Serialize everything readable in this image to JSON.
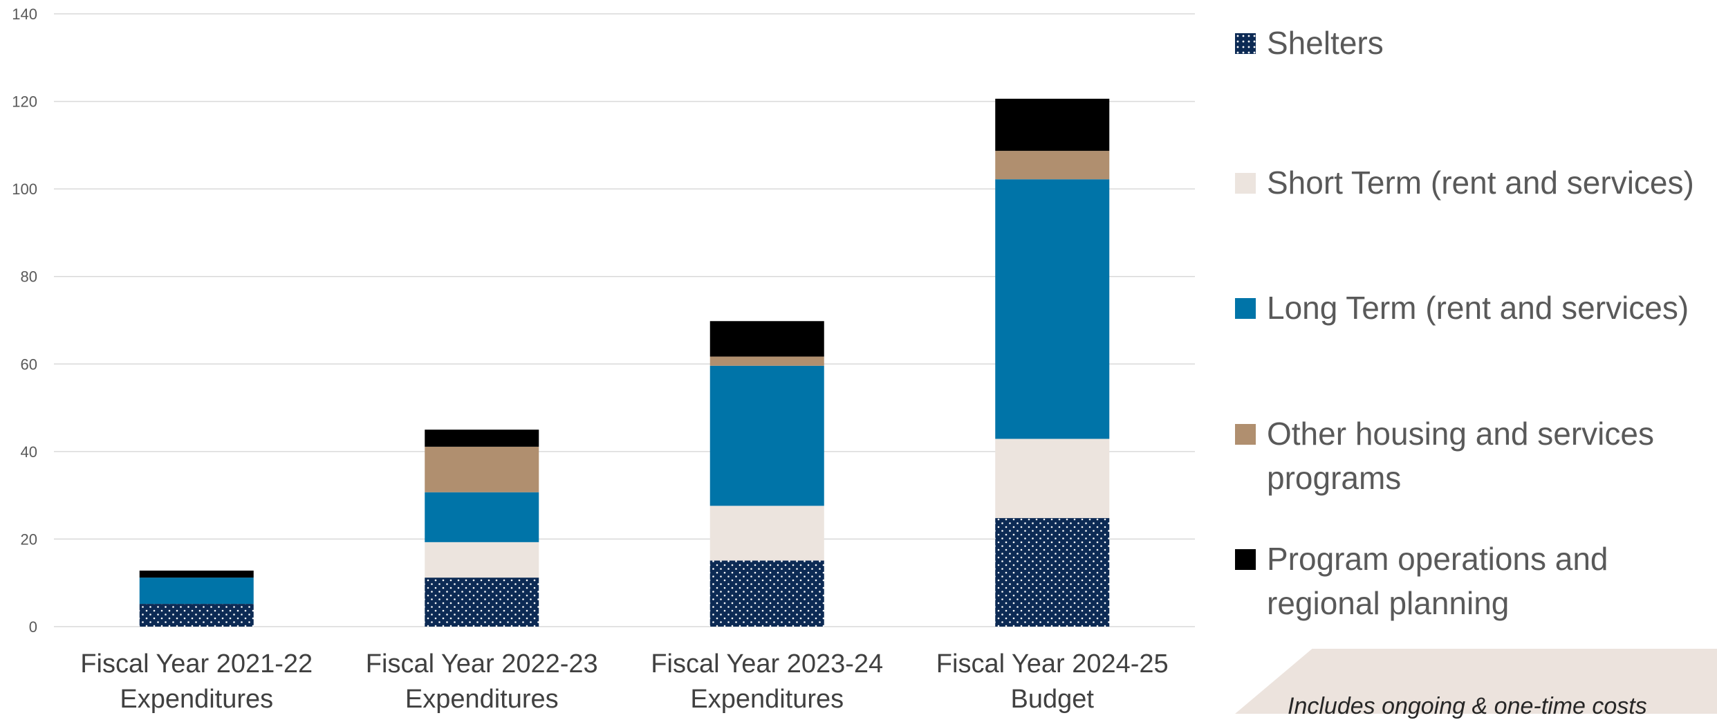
{
  "chart_data": {
    "type": "bar",
    "stacked": true,
    "categories": [
      [
        "Fiscal Year 2021-22",
        "Expenditures"
      ],
      [
        "Fiscal Year 2022-23",
        "Expenditures"
      ],
      [
        "Fiscal Year 2023-24",
        "Expenditures"
      ],
      [
        "Fiscal Year 2024-25",
        "Budget"
      ]
    ],
    "ylim": [
      0,
      140
    ],
    "yticks": [
      "0",
      "20",
      "40",
      "60",
      "80",
      "100",
      "120",
      "140"
    ],
    "grid": true,
    "legend_position": "right",
    "series": [
      {
        "name": "Shelters",
        "color": "#0c2a54",
        "pattern": "dots",
        "values": [
          5.2,
          11.2,
          15.1,
          24.8
        ]
      },
      {
        "name": "Short Term (rent and services)",
        "color": "#ece4de",
        "values": [
          0,
          8.1,
          12.5,
          18.1
        ]
      },
      {
        "name": "Long Term (rent and services)",
        "color": "#0074a8",
        "values": [
          6.0,
          11.4,
          32.0,
          59.3
        ]
      },
      {
        "name": "Other housing and services programs",
        "color": "#b08f6f",
        "values": [
          0,
          10.4,
          2.1,
          6.5
        ]
      },
      {
        "name": "Program operations and regional planning",
        "color": "#000000",
        "values": [
          1.6,
          3.9,
          8.1,
          11.9
        ]
      }
    ],
    "annotation": "Includes ongoing & one-time costs"
  }
}
